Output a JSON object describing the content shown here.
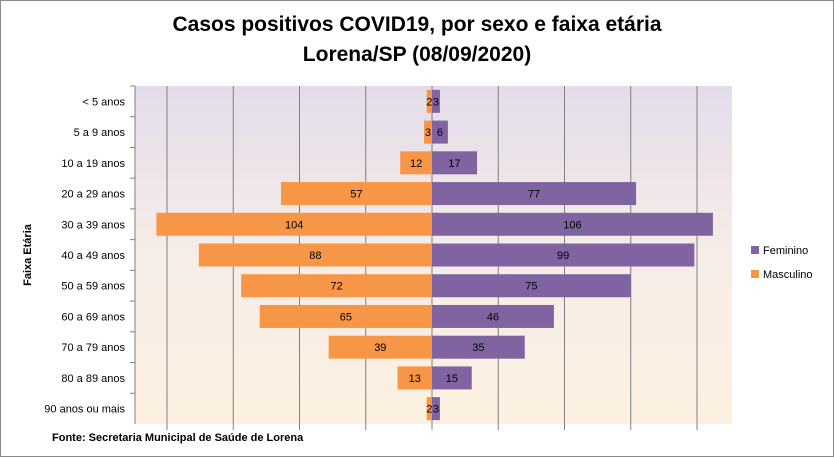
{
  "title_line1": "Casos positivos COVID19, por sexo e faixa etária",
  "title_line2": "Lorena/SP (08/09/2020)",
  "footnote": "Fonte: Secretaria Municipal  de Saúde de Lorena",
  "colors": {
    "feminino": "#8064a2",
    "masculino": "#f79646",
    "gridline": "#7f7f7f"
  },
  "chart_data": {
    "type": "bar",
    "orientation": "horizontal",
    "layout": "population-pyramid",
    "categories": [
      "< 5 anos",
      "5 a 9 anos",
      "10 a 19 anos",
      "20 a 29 anos",
      "30 a 39 anos",
      "40 a 49 anos",
      "50 a 59 anos",
      "60 a 69 anos ",
      "70 a 79 anos",
      "80 a 89 anos",
      "90 anos ou mais"
    ],
    "series": [
      {
        "name": "Feminino",
        "side": "right",
        "values": [
          3,
          6,
          17,
          77,
          106,
          99,
          75,
          46,
          35,
          15,
          3
        ]
      },
      {
        "name": "Masculino",
        "side": "left",
        "values": [
          2,
          3,
          12,
          57,
          104,
          88,
          72,
          65,
          39,
          13,
          2
        ]
      }
    ],
    "ylabel": "Faixa Etária",
    "xlabel": "",
    "xlim": [
      -125,
      125
    ],
    "grid": true,
    "legend": "right"
  }
}
